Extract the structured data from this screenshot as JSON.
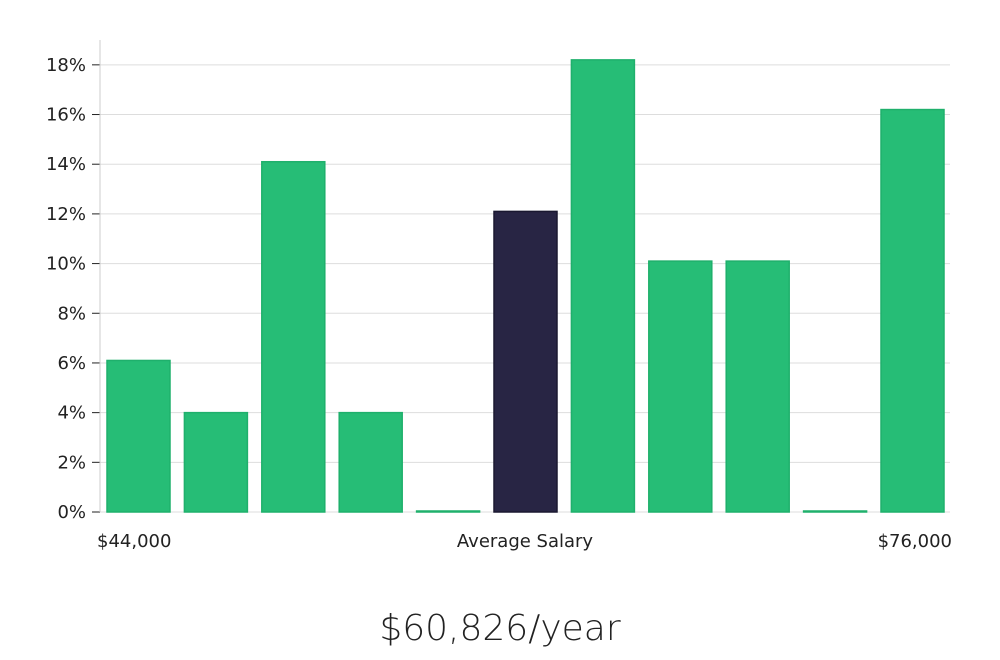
{
  "chart_data": {
    "type": "bar",
    "title": "",
    "xlabel": "Average Salary",
    "ylabel": "",
    "ylim": [
      0,
      19
    ],
    "yticks": [
      0,
      2,
      4,
      6,
      8,
      10,
      12,
      14,
      16,
      18
    ],
    "ytick_suffix": "%",
    "x_range_labels": {
      "min": "$44,000",
      "center": "Average Salary",
      "max": "$76,000"
    },
    "values": [
      6.1,
      4.0,
      14.1,
      4.0,
      0.0,
      12.1,
      18.2,
      10.1,
      10.1,
      0.0,
      16.2
    ],
    "highlight_index": 5,
    "colors": {
      "bar": "#26bd76",
      "highlight": "#282544",
      "grid": "#dddddd",
      "axis": "#cccccc"
    }
  },
  "summary": {
    "salary_text": "$60,826/year"
  }
}
